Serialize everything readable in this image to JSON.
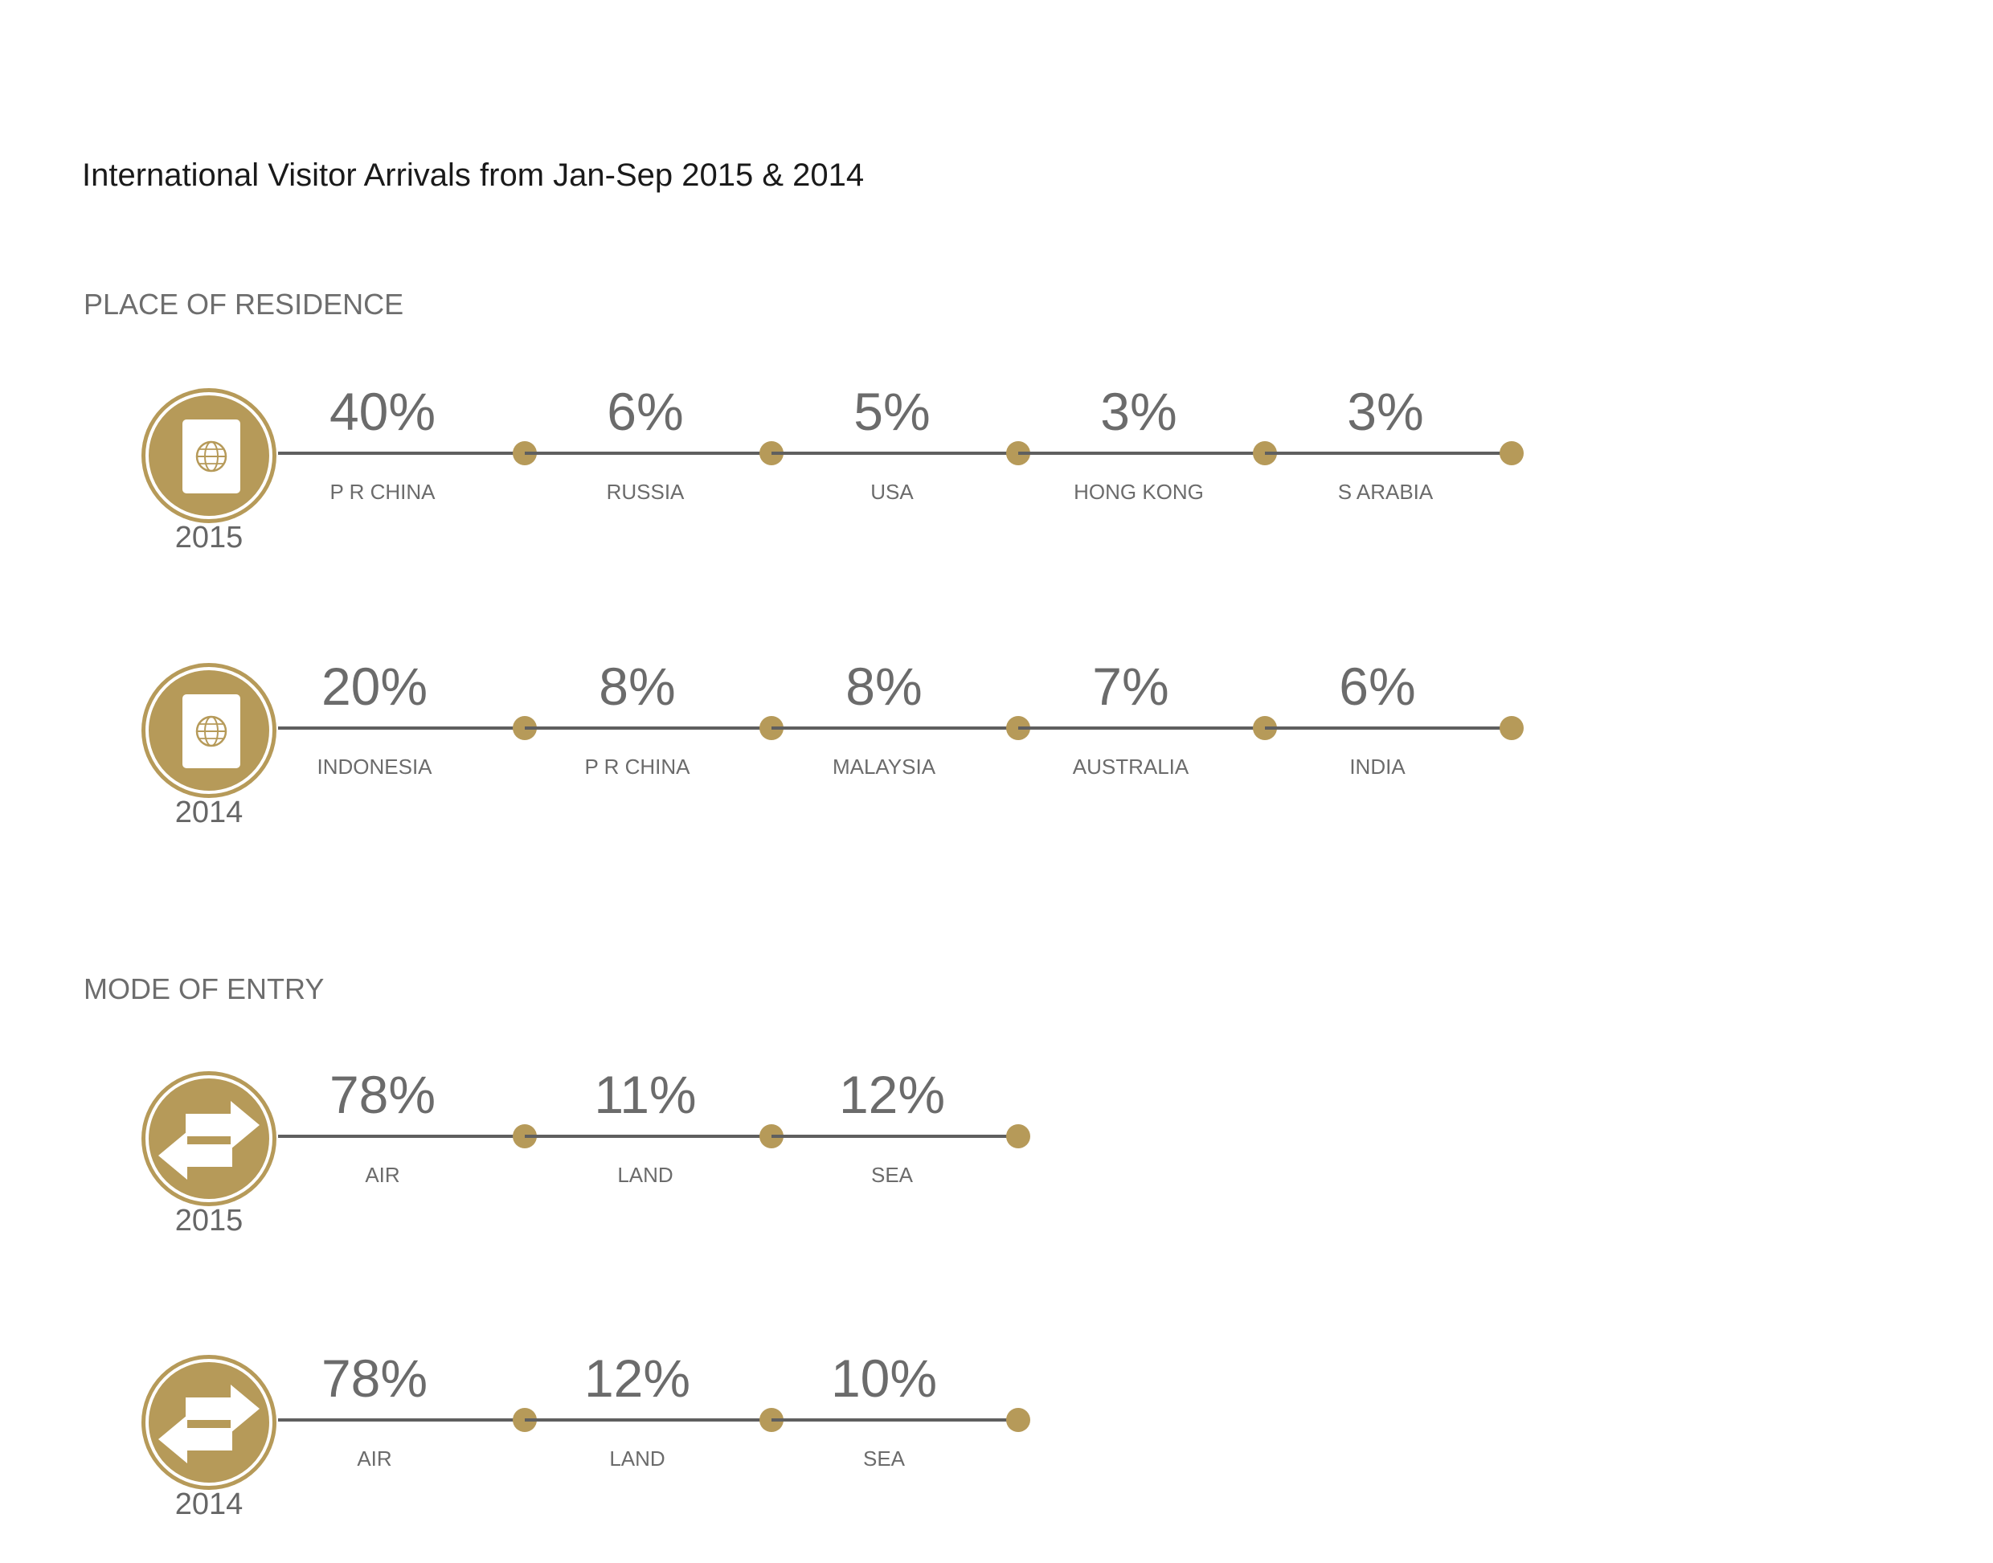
{
  "title": "International Visitor Arrivals from Jan-Sep 2015 & 2014",
  "colors": {
    "accent": "#b69a59",
    "line": "#5f5f5f",
    "text": "#6b6b6b"
  },
  "sections": [
    {
      "label": "PLACE OF RESIDENCE",
      "icon": "passport-globe-icon"
    },
    {
      "label": "MODE OF ENTRY",
      "icon": "two-way-arrows-icon"
    }
  ],
  "chart_data": [
    {
      "type": "table",
      "section": "PLACE OF RESIDENCE",
      "year": "2015",
      "categories": [
        "P R CHINA",
        "RUSSIA",
        "USA",
        "HONG KONG",
        "S ARABIA"
      ],
      "values": [
        40,
        6,
        5,
        3,
        3
      ],
      "value_labels": [
        "40%",
        "6%",
        "5%",
        "3%",
        "3%"
      ]
    },
    {
      "type": "table",
      "section": "PLACE OF RESIDENCE",
      "year": "2014",
      "categories": [
        "INDONESIA",
        "P R CHINA",
        "MALAYSIA",
        "AUSTRALIA",
        "INDIA"
      ],
      "values": [
        20,
        8,
        8,
        7,
        6
      ],
      "value_labels": [
        "20%",
        "8%",
        "8%",
        "7%",
        "6%"
      ]
    },
    {
      "type": "table",
      "section": "MODE OF ENTRY",
      "year": "2015",
      "categories": [
        "AIR",
        "LAND",
        "SEA"
      ],
      "values": [
        78,
        11,
        12
      ],
      "value_labels": [
        "78%",
        "11%",
        "12%"
      ]
    },
    {
      "type": "table",
      "section": "MODE OF ENTRY",
      "year": "2014",
      "categories": [
        "AIR",
        "LAND",
        "SEA"
      ],
      "values": [
        78,
        12,
        10
      ],
      "value_labels": [
        "78%",
        "12%",
        "10%"
      ]
    }
  ]
}
